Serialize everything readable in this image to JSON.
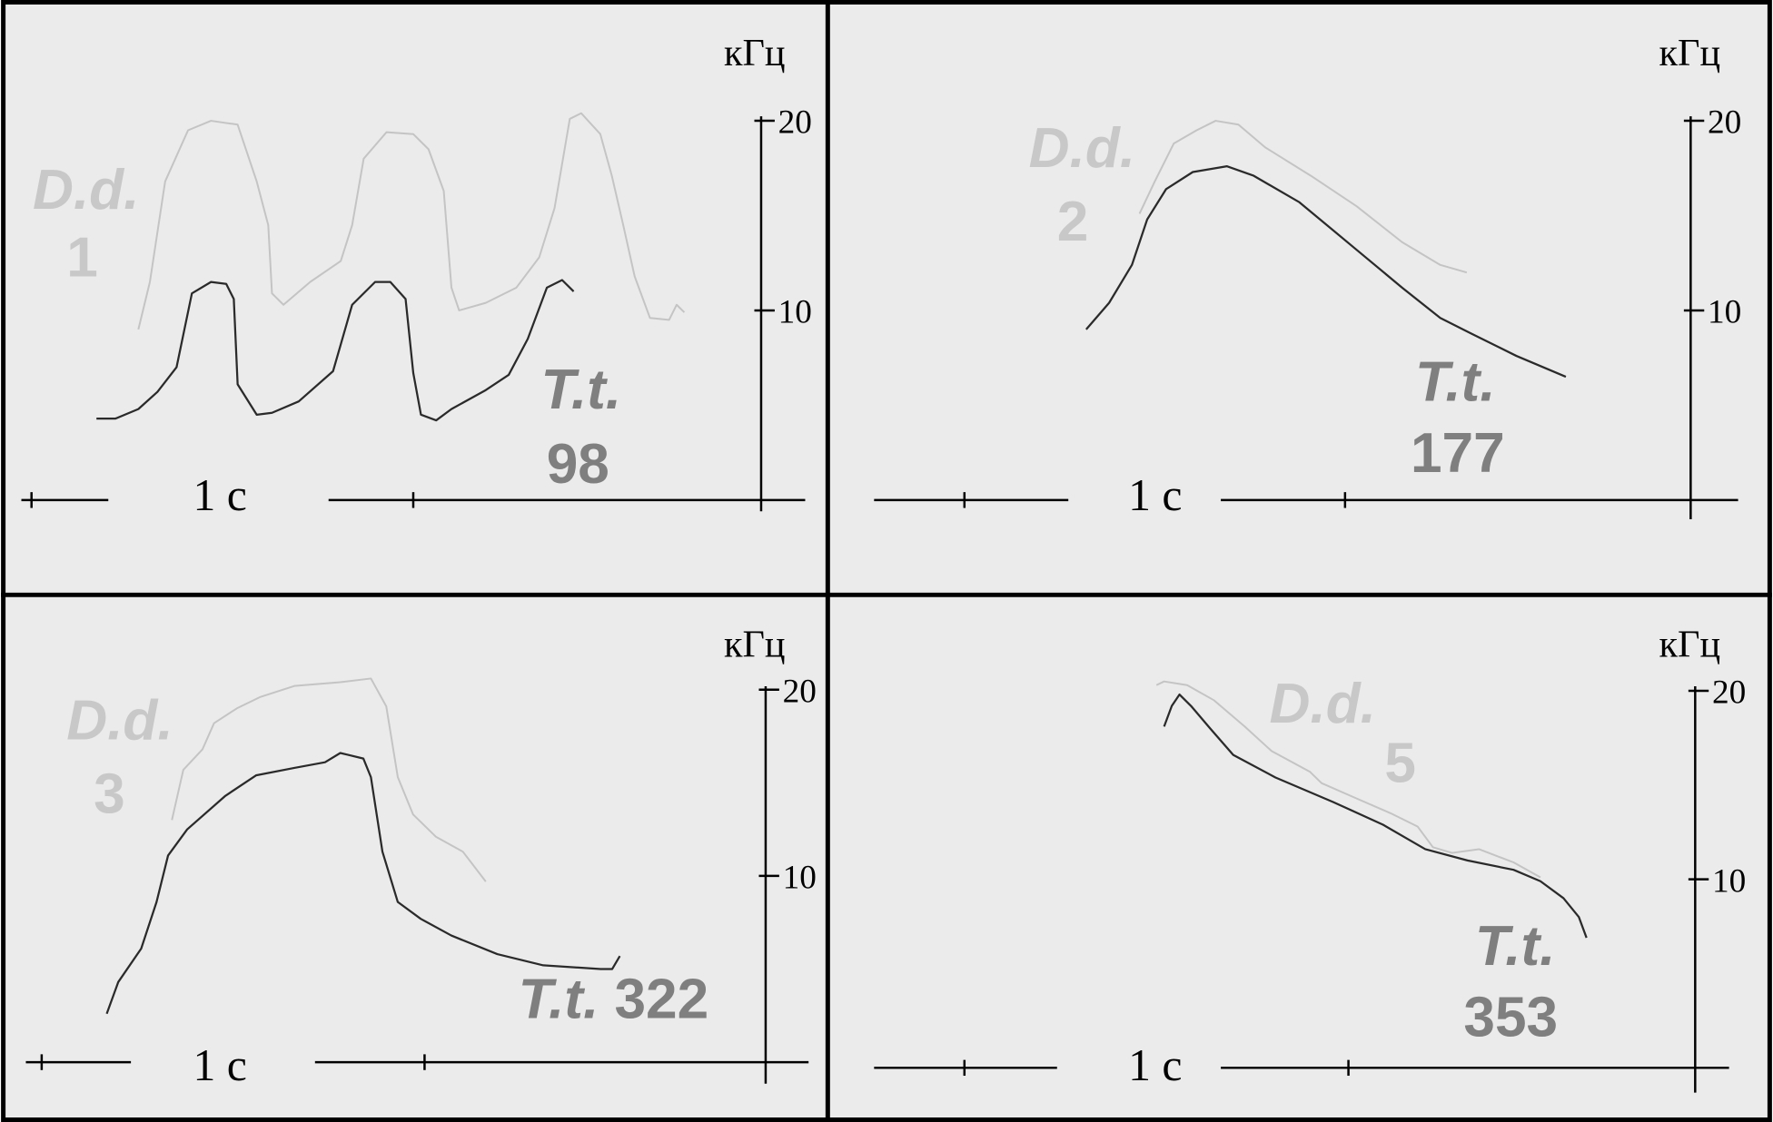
{
  "colors": {
    "background": "#ebebeb",
    "border": "#000000",
    "dd_series": "#c4c4c4",
    "tt_series": "#2a2a2a",
    "dd_label": "#c8c8c8",
    "tt_label": "#7f7f7f"
  },
  "chart_data": [
    {
      "type": "line",
      "title": "",
      "xlabel": "",
      "ylabel": "кГц",
      "scale_bar": "1 с",
      "y_ticks": [
        "10",
        "20"
      ],
      "ylim": [
        0,
        20
      ],
      "grid": false,
      "series": [
        {
          "name": "D.d. 1",
          "x": [
            0.28,
            0.31,
            0.35,
            0.41,
            0.47,
            0.54,
            0.59,
            0.62,
            0.63,
            0.66,
            0.73,
            0.81,
            0.84,
            0.87,
            0.93,
            1.0,
            1.04,
            1.08,
            1.1,
            1.12,
            1.19,
            1.27,
            1.33,
            1.37,
            1.41,
            1.44,
            1.49,
            1.52,
            1.55,
            1.58,
            1.62,
            1.67,
            1.69,
            1.71
          ],
          "y": [
            9.0,
            11.5,
            16.8,
            19.5,
            20.0,
            19.8,
            16.8,
            14.5,
            10.9,
            10.3,
            11.5,
            12.6,
            14.5,
            18.0,
            19.4,
            19.3,
            18.5,
            16.3,
            11.2,
            10.0,
            10.4,
            11.2,
            12.8,
            15.4,
            20.1,
            20.4,
            19.3,
            17.1,
            14.5,
            11.8,
            9.6,
            9.5,
            10.3,
            9.9
          ]
        },
        {
          "name": "T.t. 98",
          "x": [
            0.17,
            0.22,
            0.28,
            0.33,
            0.38,
            0.42,
            0.47,
            0.51,
            0.53,
            0.54,
            0.59,
            0.63,
            0.7,
            0.79,
            0.84,
            0.9,
            0.94,
            0.98,
            1.0,
            1.02,
            1.06,
            1.1,
            1.19,
            1.25,
            1.3,
            1.35,
            1.39,
            1.42
          ],
          "y": [
            4.3,
            4.3,
            4.8,
            5.7,
            7.0,
            10.9,
            11.5,
            11.4,
            10.6,
            6.1,
            4.5,
            4.6,
            5.2,
            6.8,
            10.3,
            11.5,
            11.5,
            10.6,
            6.7,
            4.5,
            4.2,
            4.8,
            5.8,
            6.6,
            8.5,
            11.2,
            11.6,
            11.0
          ]
        }
      ]
    },
    {
      "type": "line",
      "title": "",
      "xlabel": "",
      "ylabel": "кГц",
      "scale_bar": "1 с",
      "y_ticks": [
        "10",
        "20"
      ],
      "ylim": [
        0,
        20
      ],
      "grid": false,
      "series": [
        {
          "name": "D.d. 2",
          "x": [
            0.46,
            0.5,
            0.55,
            0.61,
            0.66,
            0.72,
            0.79,
            0.91,
            1.03,
            1.15,
            1.25,
            1.32
          ],
          "y": [
            15.1,
            16.8,
            18.8,
            19.5,
            20.0,
            19.8,
            18.6,
            17.1,
            15.5,
            13.6,
            12.4,
            12.0
          ]
        },
        {
          "name": "T.t. 177",
          "x": [
            0.32,
            0.38,
            0.44,
            0.48,
            0.53,
            0.6,
            0.69,
            0.76,
            0.88,
            1.03,
            1.15,
            1.25,
            1.33,
            1.45,
            1.58
          ],
          "y": [
            9.0,
            10.4,
            12.4,
            14.8,
            16.4,
            17.3,
            17.6,
            17.1,
            15.7,
            13.2,
            11.2,
            9.6,
            8.8,
            7.6,
            6.5
          ]
        }
      ]
    },
    {
      "type": "line",
      "title": "",
      "xlabel": "",
      "ylabel": "кГц",
      "scale_bar": "1 с",
      "y_ticks": [
        "10",
        "20"
      ],
      "ylim": [
        0,
        20
      ],
      "grid": false,
      "series": [
        {
          "name": "D.d. 3",
          "x": [
            0.34,
            0.37,
            0.42,
            0.45,
            0.51,
            0.57,
            0.66,
            0.78,
            0.86,
            0.9,
            0.93,
            0.97,
            1.03,
            1.1,
            1.16
          ],
          "y": [
            13.0,
            15.7,
            16.8,
            18.2,
            19.0,
            19.6,
            20.2,
            20.4,
            20.6,
            19.1,
            15.3,
            13.3,
            12.1,
            11.3,
            9.7
          ]
        },
        {
          "name": "T.t. 322",
          "x": [
            0.17,
            0.2,
            0.26,
            0.3,
            0.33,
            0.38,
            0.48,
            0.56,
            0.66,
            0.74,
            0.78,
            0.84,
            0.86,
            0.89,
            0.93,
            0.99,
            1.07,
            1.19,
            1.31,
            1.46,
            1.49,
            1.51
          ],
          "y": [
            2.6,
            4.3,
            6.1,
            8.6,
            11.1,
            12.5,
            14.3,
            15.4,
            15.8,
            16.1,
            16.6,
            16.3,
            15.3,
            11.3,
            8.6,
            7.7,
            6.8,
            5.8,
            5.2,
            5.0,
            5.0,
            5.7
          ]
        }
      ]
    },
    {
      "type": "line",
      "title": "",
      "xlabel": "",
      "ylabel": "кГц",
      "scale_bar": "1 с",
      "y_ticks": [
        "10",
        "20"
      ],
      "ylim": [
        0,
        20
      ],
      "grid": false,
      "series": [
        {
          "name": "D.d. 5",
          "x": [
            0.5,
            0.52,
            0.58,
            0.65,
            0.73,
            0.8,
            0.9,
            0.93,
            1.02,
            1.11,
            1.18,
            1.22,
            1.27,
            1.34,
            1.43,
            1.5
          ],
          "y": [
            20.3,
            20.5,
            20.3,
            19.5,
            18.1,
            16.8,
            15.7,
            15.1,
            14.3,
            13.5,
            12.8,
            11.7,
            11.4,
            11.6,
            10.9,
            10.1
          ]
        },
        {
          "name": "T.t. 353",
          "x": [
            0.52,
            0.54,
            0.56,
            0.59,
            0.64,
            0.7,
            0.81,
            0.96,
            1.09,
            1.2,
            1.31,
            1.43,
            1.5,
            1.56,
            1.6,
            1.62
          ],
          "y": [
            18.1,
            19.2,
            19.8,
            19.2,
            18.0,
            16.6,
            15.4,
            14.1,
            12.9,
            11.6,
            11.0,
            10.5,
            9.9,
            9.0,
            8.0,
            6.9
          ]
        }
      ]
    }
  ]
}
